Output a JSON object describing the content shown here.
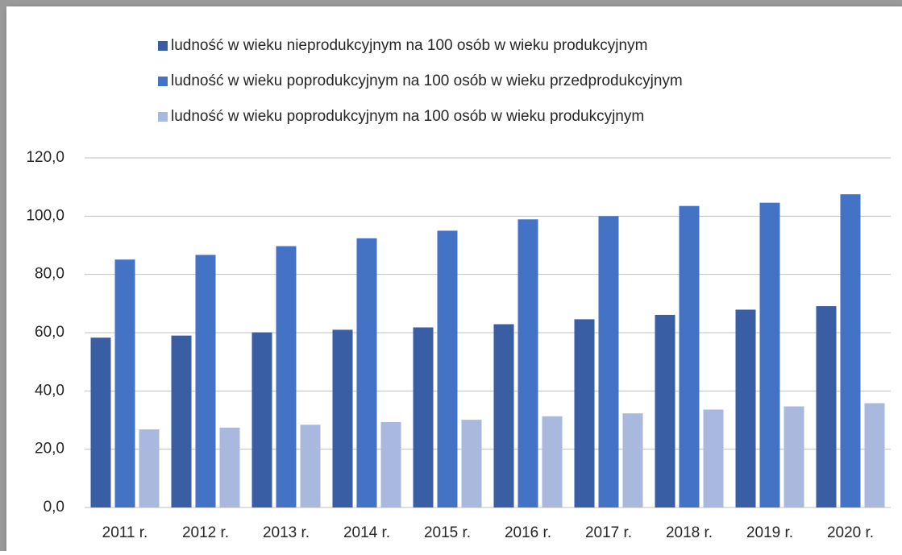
{
  "chart_data": {
    "type": "bar",
    "categories": [
      "2011 r.",
      "2012 r.",
      "2013 r.",
      "2014 r.",
      "2015 r.",
      "2016 r.",
      "2017 r.",
      "2018 r.",
      "2019 r.",
      "2020 r."
    ],
    "series": [
      {
        "name": "ludność w wieku nieprodukcyjnym na 100 osób w wieku produkcyjnym",
        "color": "#3a5ea4",
        "values": [
          58.3,
          59.0,
          60.1,
          61.0,
          61.8,
          62.9,
          64.6,
          66.1,
          67.9,
          69.1
        ]
      },
      {
        "name": "ludność w wieku poprodukcyjnym na 100 osób w wieku przedprodukcyjnym",
        "color": "#4472c4",
        "values": [
          85.1,
          86.7,
          89.7,
          92.4,
          95.0,
          98.9,
          100.0,
          103.5,
          104.6,
          107.5
        ]
      },
      {
        "name": "ludność w wieku poprodukcyjnym na 100 osób w wieku produkcyjnym",
        "color": "#a9b8de",
        "values": [
          26.8,
          27.4,
          28.4,
          29.3,
          30.1,
          31.3,
          32.3,
          33.6,
          34.7,
          35.8
        ]
      }
    ],
    "ylim": [
      0,
      120
    ],
    "yticks": [
      {
        "value": 0,
        "label": "0,0"
      },
      {
        "value": 20,
        "label": "20,0"
      },
      {
        "value": 40,
        "label": "40,0"
      },
      {
        "value": 60,
        "label": "60,0"
      },
      {
        "value": 80,
        "label": "80,0"
      },
      {
        "value": 100,
        "label": "100,0"
      },
      {
        "value": 120,
        "label": "120,0"
      }
    ],
    "grid": true,
    "legend": "top"
  }
}
